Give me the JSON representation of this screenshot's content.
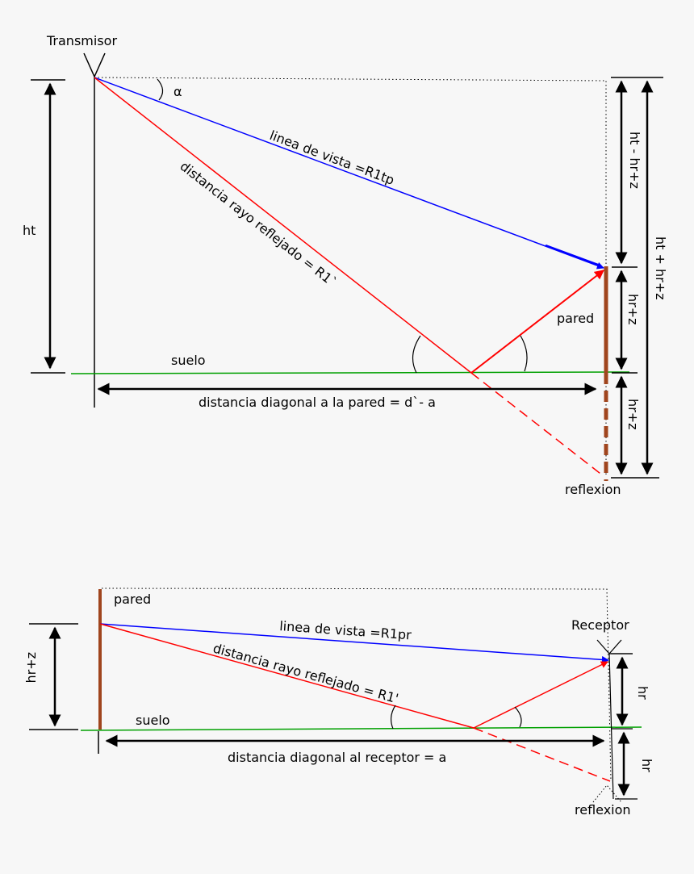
{
  "diagram1": {
    "transmitter_label": "Transmisor",
    "alpha_label": "α",
    "ht_label": "ht",
    "los_label": "linea de vista =R1tp",
    "reflected_label": "distancia rayo reflejado = R1`",
    "wall_label": "pared",
    "ground_label": "suelo",
    "distance_label": "distancia diagonal a la pared = d`- a",
    "reflection_label": "reflexion",
    "upper_right_label": "ht - hr+z",
    "middle_right_label": "hr+z",
    "lower_right_label": "hr+z",
    "total_right_label": "ht + hr+z"
  },
  "diagram2": {
    "wall_label": "pared",
    "receiver_label": "Receptor",
    "left_height_label": "hr+z",
    "los_label": "linea de vista =R1pr",
    "reflected_label": "distancia rayo reflejado = R1'",
    "ground_label": "suelo",
    "distance_label": "distancia diagonal al receptor = a",
    "hr_upper_label": "hr",
    "hr_lower_label": "hr",
    "reflection_label": "reflexion"
  },
  "colors": {
    "los": "#0000ff",
    "reflected": "#ff0000",
    "ground": "#00a000",
    "wall": "#a0451e",
    "line": "#000000"
  }
}
